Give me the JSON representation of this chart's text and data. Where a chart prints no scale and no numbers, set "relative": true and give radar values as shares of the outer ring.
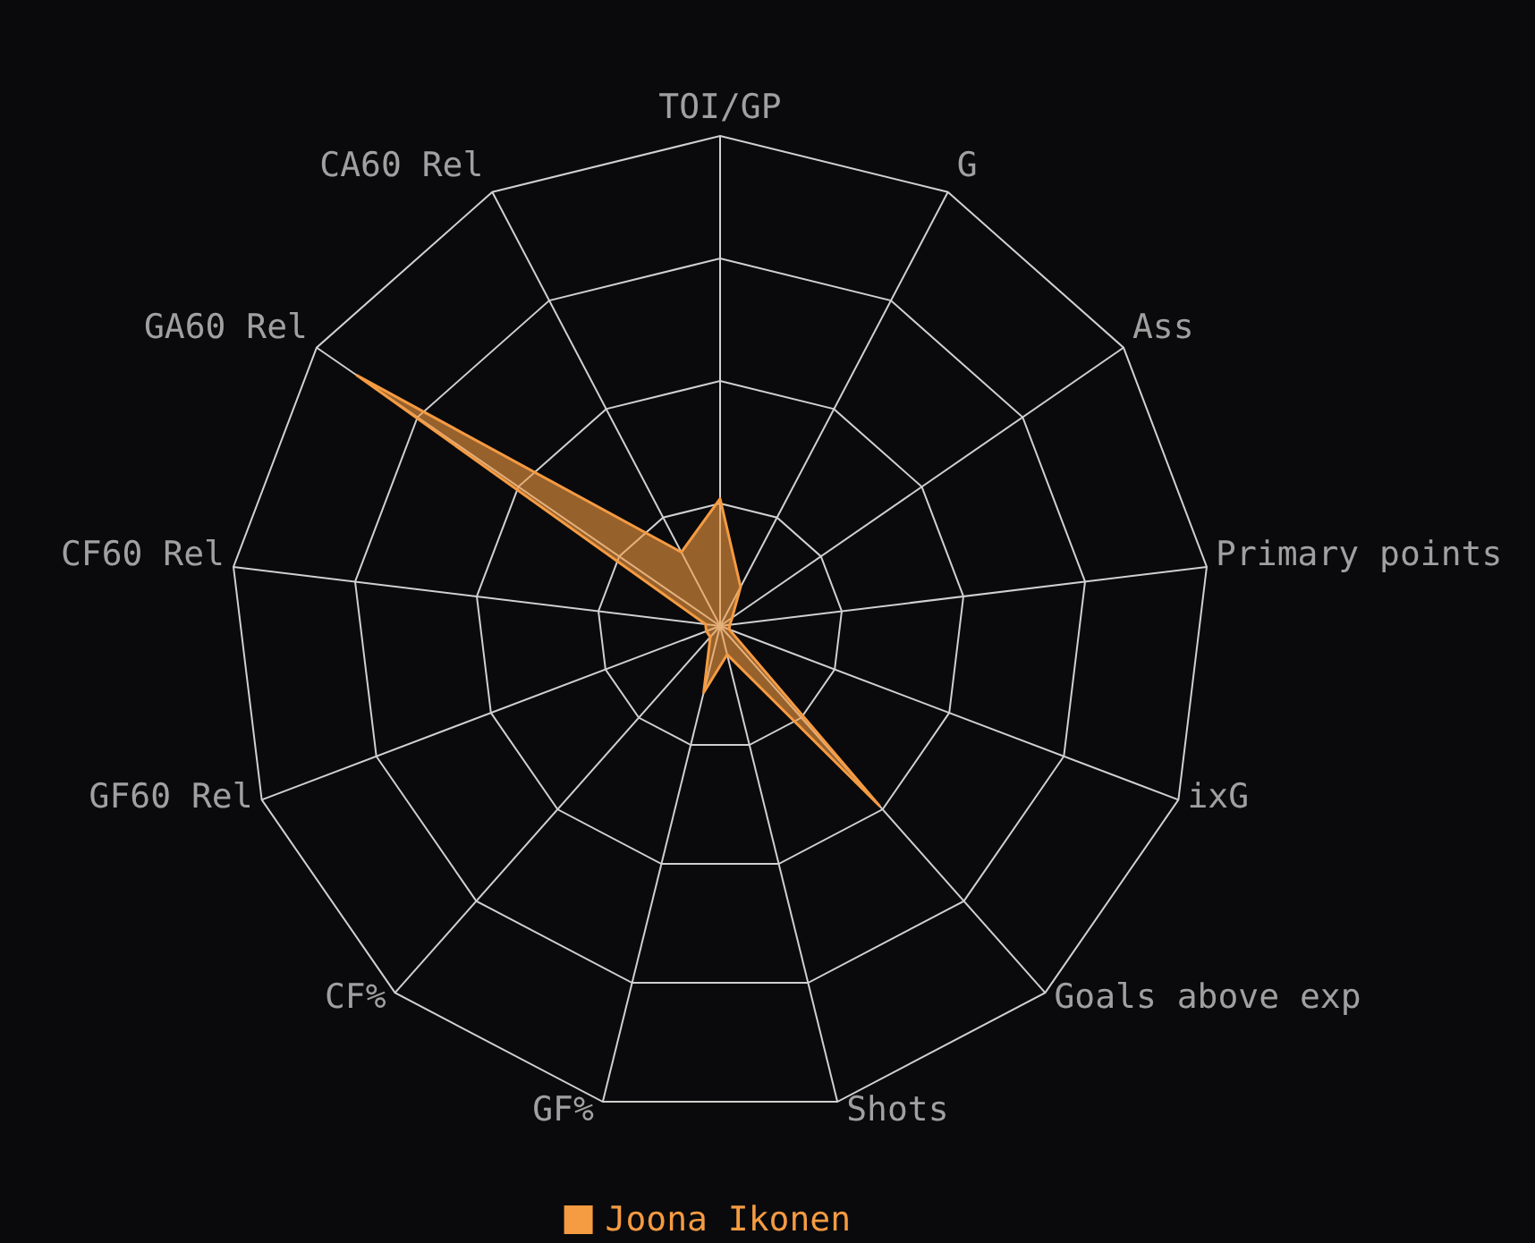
{
  "chart_data": {
    "type": "radar",
    "relative": true,
    "categories": [
      "TOI/GP",
      "G",
      "Ass",
      "Primary points",
      "ixG",
      "Goals above exp",
      "Shots",
      "GF%",
      "CF%",
      "GF60 Rel",
      "CF60 Rel",
      "GA60 Rel",
      "CA60 Rel"
    ],
    "series": [
      {
        "name": "Joona Ikonen",
        "color": "#f59b42",
        "values": [
          0.26,
          0.09,
          0.03,
          0.02,
          0.02,
          0.49,
          0.06,
          0.14,
          0.03,
          0.03,
          0.03,
          0.9,
          0.17
        ]
      }
    ],
    "grid": true,
    "legend": "bottom"
  }
}
